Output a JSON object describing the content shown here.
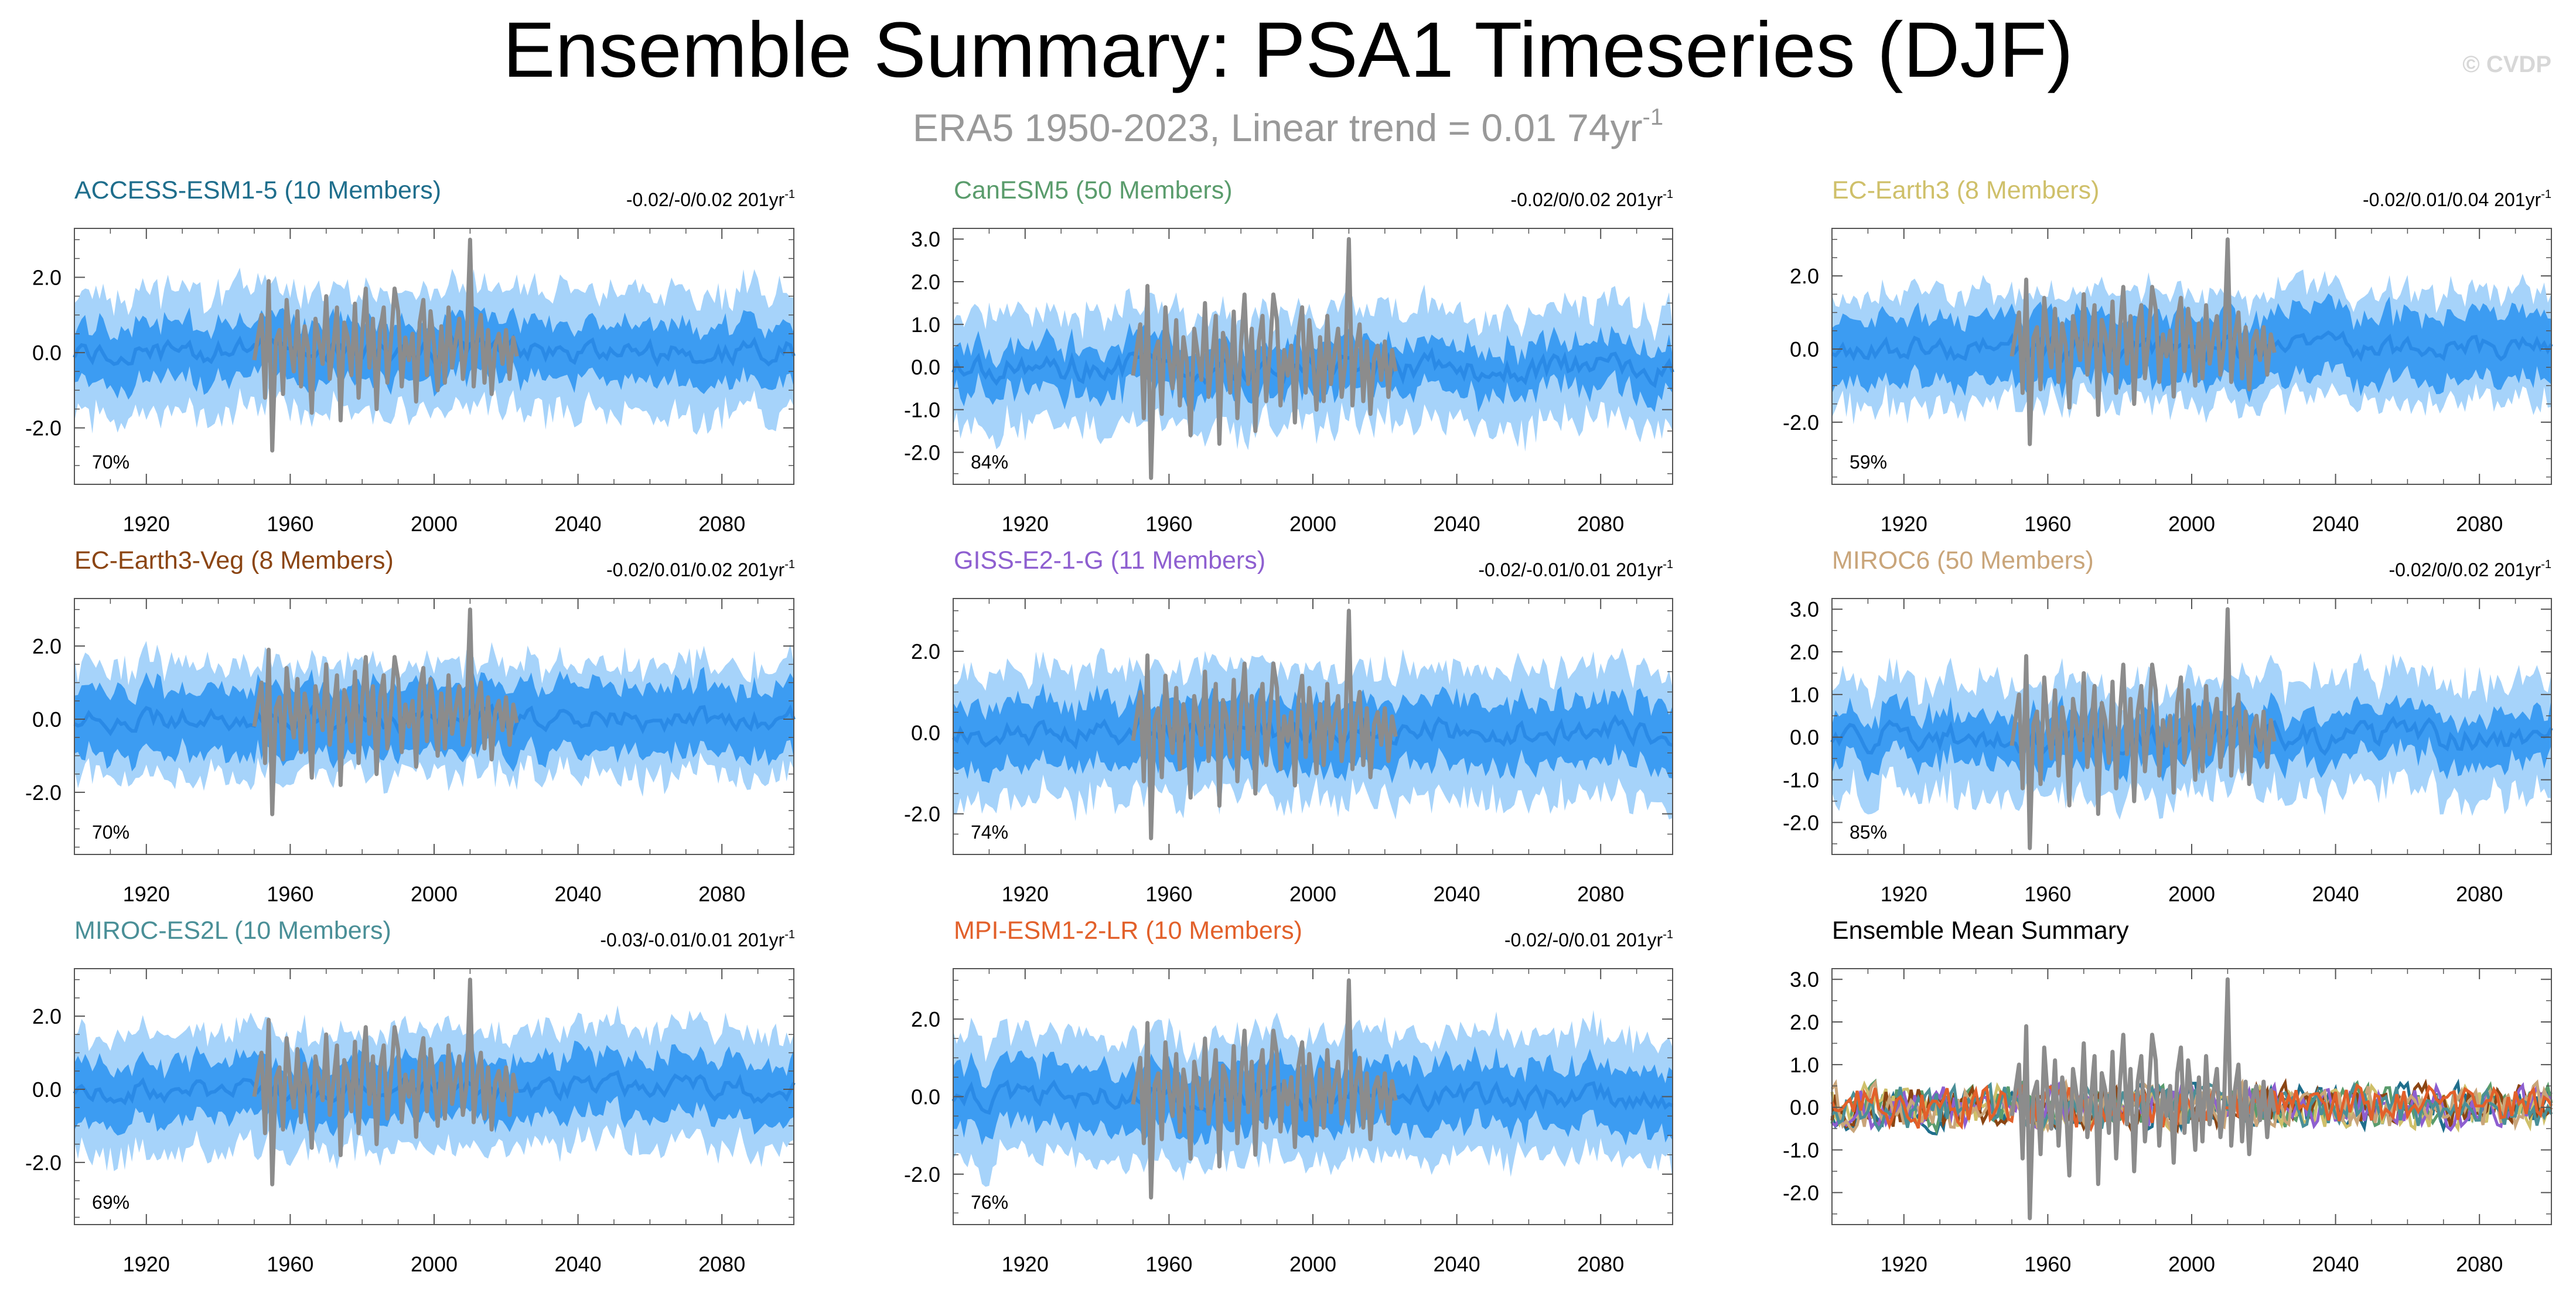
{
  "title": "Ensemble Summary: PSA1 Timeseries (DJF)",
  "subtitle": {
    "text": "ERA5 1950-2023, Linear trend = 0.01 74yr",
    "superscript": "-1"
  },
  "watermark": "© CVDP",
  "colors": {
    "outer_band": "#a6d3fa",
    "inner_band": "#3c9cf2",
    "ensemble_mean": "#2a8ae6",
    "observations": "#8c8c8c",
    "axis": "#555555"
  },
  "chart_data": [
    {
      "type": "area",
      "title": "ACCESS-ESM1-5 (10 Members)",
      "title_color": "#1f6e8c",
      "trend_text": "-0.02/-0/0.02 201yr",
      "trend_superscript": "-1",
      "percent_label": "70%",
      "x_range": [
        1900,
        2100
      ],
      "ylim": [
        -3.5,
        3.3
      ],
      "yticks": [
        2.0,
        0.0,
        -2.0
      ],
      "ytick_labels": [
        "2.0",
        "0.0",
        "-2.0"
      ],
      "xticks": [
        1920,
        1960,
        2000,
        2040,
        2080
      ],
      "outer_halfwidth": 1.6,
      "inner_halfwidth": 0.75,
      "seed": 11
    },
    {
      "type": "area",
      "title": "CanESM5 (50 Members)",
      "title_color": "#5a9c6c",
      "trend_text": "-0.02/0/0.02 201yr",
      "trend_superscript": "-1",
      "percent_label": "84%",
      "x_range": [
        1900,
        2100
      ],
      "ylim": [
        -2.75,
        3.25
      ],
      "yticks": [
        3.0,
        2.0,
        1.0,
        0.0,
        -1.0,
        -2.0
      ],
      "ytick_labels": [
        "3.0",
        "2.0",
        "1.0",
        "0.0",
        "-1.0",
        "-2.0"
      ],
      "xticks": [
        1920,
        1960,
        2000,
        2040,
        2080
      ],
      "outer_halfwidth": 1.3,
      "inner_halfwidth": 0.55,
      "seed": 23
    },
    {
      "type": "area",
      "title": "EC-Earth3 (8 Members)",
      "title_color": "#cfc06a",
      "trend_text": "-0.02/0.01/0.04 201yr",
      "trend_superscript": "-1",
      "percent_label": "59%",
      "x_range": [
        1900,
        2100
      ],
      "ylim": [
        -3.7,
        3.3
      ],
      "yticks": [
        2.0,
        0.0,
        -2.0
      ],
      "ytick_labels": [
        "2.0",
        "0.0",
        "-2.0"
      ],
      "xticks": [
        1920,
        1960,
        2000,
        2040,
        2080
      ],
      "outer_halfwidth": 1.5,
      "inner_halfwidth": 0.9,
      "seed": 37
    },
    {
      "type": "area",
      "title": "EC-Earth3-Veg (8 Members)",
      "title_color": "#8b4513",
      "trend_text": "-0.02/0.01/0.02 201yr",
      "trend_superscript": "-1",
      "percent_label": "70%",
      "x_range": [
        1900,
        2100
      ],
      "ylim": [
        -3.7,
        3.3
      ],
      "yticks": [
        2.0,
        0.0,
        -2.0
      ],
      "ytick_labels": [
        "2.0",
        "0.0",
        "-2.0"
      ],
      "xticks": [
        1920,
        1960,
        2000,
        2040,
        2080
      ],
      "outer_halfwidth": 1.5,
      "inner_halfwidth": 0.9,
      "seed": 41
    },
    {
      "type": "area",
      "title": "GISS-E2-1-G (11 Members)",
      "title_color": "#8e5fd0",
      "trend_text": "-0.02/-0.01/0.01 201yr",
      "trend_superscript": "-1",
      "percent_label": "74%",
      "x_range": [
        1900,
        2100
      ],
      "ylim": [
        -3.0,
        3.3
      ],
      "yticks": [
        2.0,
        0.0,
        -2.0
      ],
      "ytick_labels": [
        "2.0",
        "0.0",
        "-2.0"
      ],
      "xticks": [
        1920,
        1960,
        2000,
        2040,
        2080
      ],
      "outer_halfwidth": 1.6,
      "inner_halfwidth": 0.8,
      "seed": 53
    },
    {
      "type": "area",
      "title": "MIROC6 (50 Members)",
      "title_color": "#c9a57a",
      "trend_text": "-0.02/0/0.02 201yr",
      "trend_superscript": "-1",
      "percent_label": "85%",
      "x_range": [
        1900,
        2100
      ],
      "ylim": [
        -2.75,
        3.25
      ],
      "yticks": [
        3.0,
        2.0,
        1.0,
        0.0,
        -1.0,
        -2.0
      ],
      "ytick_labels": [
        "3.0",
        "2.0",
        "1.0",
        "0.0",
        "-1.0",
        "-2.0"
      ],
      "xticks": [
        1920,
        1960,
        2000,
        2040,
        2080
      ],
      "outer_halfwidth": 1.3,
      "inner_halfwidth": 0.55,
      "seed": 67
    },
    {
      "type": "area",
      "title": "MIROC-ES2L (10 Members)",
      "title_color": "#4a8f97",
      "trend_text": "-0.03/-0.01/0.01 201yr",
      "trend_superscript": "-1",
      "percent_label": "69%",
      "x_range": [
        1900,
        2100
      ],
      "ylim": [
        -3.7,
        3.3
      ],
      "yticks": [
        2.0,
        0.0,
        -2.0
      ],
      "ytick_labels": [
        "2.0",
        "0.0",
        "-2.0"
      ],
      "xticks": [
        1920,
        1960,
        2000,
        2040,
        2080
      ],
      "outer_halfwidth": 1.6,
      "inner_halfwidth": 0.8,
      "seed": 79
    },
    {
      "type": "area",
      "title": "MPI-ESM1-2-LR (10 Members)",
      "title_color": "#e2602a",
      "trend_text": "-0.02/-0/0.01 201yr",
      "trend_superscript": "-1",
      "percent_label": "76%",
      "x_range": [
        1900,
        2100
      ],
      "ylim": [
        -3.3,
        3.3
      ],
      "yticks": [
        2.0,
        0.0,
        -2.0
      ],
      "ytick_labels": [
        "2.0",
        "0.0",
        "-2.0"
      ],
      "xticks": [
        1920,
        1960,
        2000,
        2040,
        2080
      ],
      "outer_halfwidth": 1.6,
      "inner_halfwidth": 0.8,
      "seed": 83
    },
    {
      "type": "line",
      "title": "Ensemble Mean Summary",
      "title_color": "#000000",
      "x_range": [
        1900,
        2100
      ],
      "ylim": [
        -2.75,
        3.25
      ],
      "yticks": [
        3.0,
        2.0,
        1.0,
        0.0,
        -1.0,
        -2.0
      ],
      "ytick_labels": [
        "3.0",
        "2.0",
        "1.0",
        "0.0",
        "-1.0",
        "-2.0"
      ],
      "xticks": [
        1920,
        1960,
        2000,
        2040,
        2080
      ],
      "series": [
        {
          "name": "ACCESS-ESM1-5",
          "color": "#1f6e8c"
        },
        {
          "name": "CanESM5",
          "color": "#5a9c6c"
        },
        {
          "name": "EC-Earth3",
          "color": "#cfc06a"
        },
        {
          "name": "EC-Earth3-Veg",
          "color": "#8b4513"
        },
        {
          "name": "GISS-E2-1-G",
          "color": "#8e5fd0"
        },
        {
          "name": "MIROC6",
          "color": "#c9a57a"
        },
        {
          "name": "MIROC-ES2L",
          "color": "#4a8f97"
        },
        {
          "name": "MPI-ESM1-2-LR",
          "color": "#e2602a"
        }
      ],
      "seed": 97
    }
  ],
  "observations": {
    "name": "ERA5",
    "years": [
      1950,
      2023
    ],
    "anomalies": [
      -0.2,
      0.4,
      1.0,
      -1.2,
      1.9,
      -2.6,
      0.3,
      0.6,
      -1.1,
      1.4,
      0.2,
      -0.5,
      1.1,
      -0.9,
      0.7,
      0.1,
      -1.6,
      0.9,
      0.3,
      -0.3,
      1.5,
      -0.7,
      0.2,
      1.2,
      -1.8,
      0.8,
      0.4,
      -0.6,
      1.3,
      -1.2,
      0.5,
      1.7,
      -0.4,
      0.9,
      -1.5,
      0.6,
      1.2,
      -0.8,
      0.3,
      1.7,
      1.1,
      -0.9,
      0.4,
      -0.2,
      0.5,
      -1.3,
      0.8,
      1.4,
      -0.6,
      1.1,
      0.2,
      -1.0,
      0.7,
      -0.8,
      1.2,
      -0.4,
      0.3,
      0.9,
      -0.7,
      0.1,
      3.0,
      -0.9,
      0.4,
      1.0,
      -0.8,
      0.6,
      -1.1,
      0.2,
      0.5,
      -0.3,
      0.6,
      -0.7,
      0.4,
      -0.1
    ]
  }
}
